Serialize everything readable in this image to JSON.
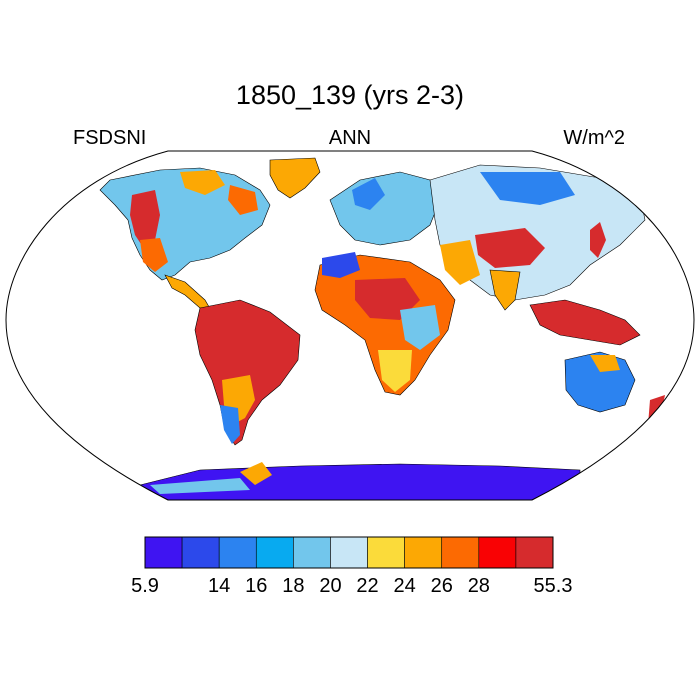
{
  "title": "1850_139 (yrs 2-3)",
  "left_label": "FSDSNI",
  "center_label": "ANN",
  "right_label": "W/m^2",
  "colorbar": {
    "colors": [
      "#3f14f2",
      "#2c49eb",
      "#2c83f0",
      "#08aaf0",
      "#72c6ec",
      "#c8e6f6",
      "#fbdb3a",
      "#fca804",
      "#fc6a02",
      "#f90204",
      "#d62b2d"
    ],
    "tick_labels": [
      "5.9",
      "14",
      "16",
      "18",
      "20",
      "22",
      "24",
      "26",
      "28",
      "55.3"
    ]
  },
  "map": {
    "ocean_color": "#ffffff",
    "land_regions": [
      {
        "name": "north-america",
        "color": "#72c6ec"
      },
      {
        "name": "greenland",
        "color": "#fca804"
      },
      {
        "name": "south-america",
        "color": "#d62b2d"
      },
      {
        "name": "europe",
        "color": "#72c6ec"
      },
      {
        "name": "africa",
        "color": "#fc6a02"
      },
      {
        "name": "asia",
        "color": "#c8e6f6"
      },
      {
        "name": "southeast-asia",
        "color": "#d62b2d"
      },
      {
        "name": "australia",
        "color": "#2c83f0"
      },
      {
        "name": "antarctica",
        "color": "#3f14f2"
      }
    ]
  }
}
